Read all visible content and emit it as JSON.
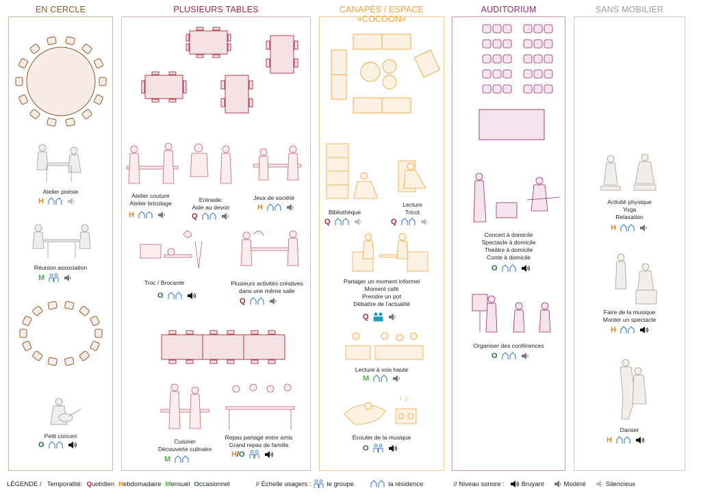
{
  "colors": {
    "brown": "#8a5a2b",
    "red": "#a8283a",
    "orange": "#f2a33a",
    "purple": "#8c2d6b",
    "gray": "#a59b90",
    "q": "#a8283a",
    "h": "#e8821e",
    "m": "#4caf3f",
    "o": "#1f6b3a",
    "blue": "#3b7bbf",
    "teal": "#1f9bb5"
  },
  "columns": {
    "cercle": "EN CERCLE",
    "tables": "PLUSIEURS TABLES",
    "canapes": "CANAPÉS / ESPACE «COCOON»",
    "auditorium": "AUDITORIUM",
    "sans": "SANS MOBILIER"
  },
  "activities": {
    "poesie": {
      "l1": "Atelier poésie",
      "temp": "H"
    },
    "reunion": {
      "l1": "Réunion association",
      "temp": "M"
    },
    "petit_concert": {
      "l1": "Petit concert",
      "temp": "O"
    },
    "couture": {
      "l1": "Atelier couture",
      "l2": "Atelier bricolage",
      "temp": "H"
    },
    "entraide": {
      "l1": "Entraide:",
      "l2": "Aide au devoir",
      "temp": "Q"
    },
    "jeux": {
      "l1": "Jeux de société",
      "temp": "H"
    },
    "troc": {
      "l1": "Troc / Brocante",
      "temp": "O"
    },
    "creatives": {
      "l1": "Plusieurs activités créatives",
      "l2": "dans une même salle",
      "temp": "Q"
    },
    "cuisiner": {
      "l1": "Cuisiner",
      "l2": "Découverte culinaire",
      "temp": "M"
    },
    "repas": {
      "l1": "Repas partagé entre amis",
      "l2": "Grand repas de famille",
      "temp_a": "H",
      "temp_sep": "/",
      "temp_b": "O"
    },
    "biblio": {
      "l1": "Bibliothèque",
      "temp": "Q"
    },
    "lecture": {
      "l1": "Lecture",
      "l2": "Tricot",
      "temp": "Q"
    },
    "partager": {
      "l1": "Partager un moment informel",
      "l2": "Moment café",
      "l3": "Prendre un pot",
      "l4": "Débattre de l'actualité",
      "temp": "Q"
    },
    "voix": {
      "l1": "Lecture à voix haute",
      "temp": "M"
    },
    "musique": {
      "l1": "Écouter de la musique",
      "temp": "O"
    },
    "concert_dom": {
      "l1": "Concert à domicile",
      "l2": "Spectacle à domicile",
      "l3": "Théâtre à domicile",
      "l4": "Conte à domicile",
      "temp": "O"
    },
    "conferences": {
      "l1": "Organiser des conférences",
      "temp": "O"
    },
    "physique": {
      "l1": "Activité physique",
      "l2": "Yoga",
      "l3": "Relaxation",
      "temp": "H"
    },
    "faire_musique": {
      "l1": "Faire de la musique",
      "l2": "Monter un spectacle",
      "temp": "H"
    },
    "danser": {
      "l1": "Danser",
      "temp": "H"
    }
  },
  "legend": {
    "title": "LÉGENDE /",
    "temporalite": "Temporalité:",
    "q_letter": "Q",
    "q_rest": "uotidien",
    "h_letter": "H",
    "h_rest": "ebdomadaire",
    "m_letter": "M",
    "m_rest": "ensuel",
    "o_letter": "O",
    "o_rest": "ccasionnel",
    "echelle": "// Échelle usagers :",
    "groupe": "le groupe",
    "residence": "la résidence",
    "niveau": "// Niveau sonore :",
    "bruyant": "Bruyant",
    "modere": "Modéré",
    "silencieux": "Silencieux"
  }
}
